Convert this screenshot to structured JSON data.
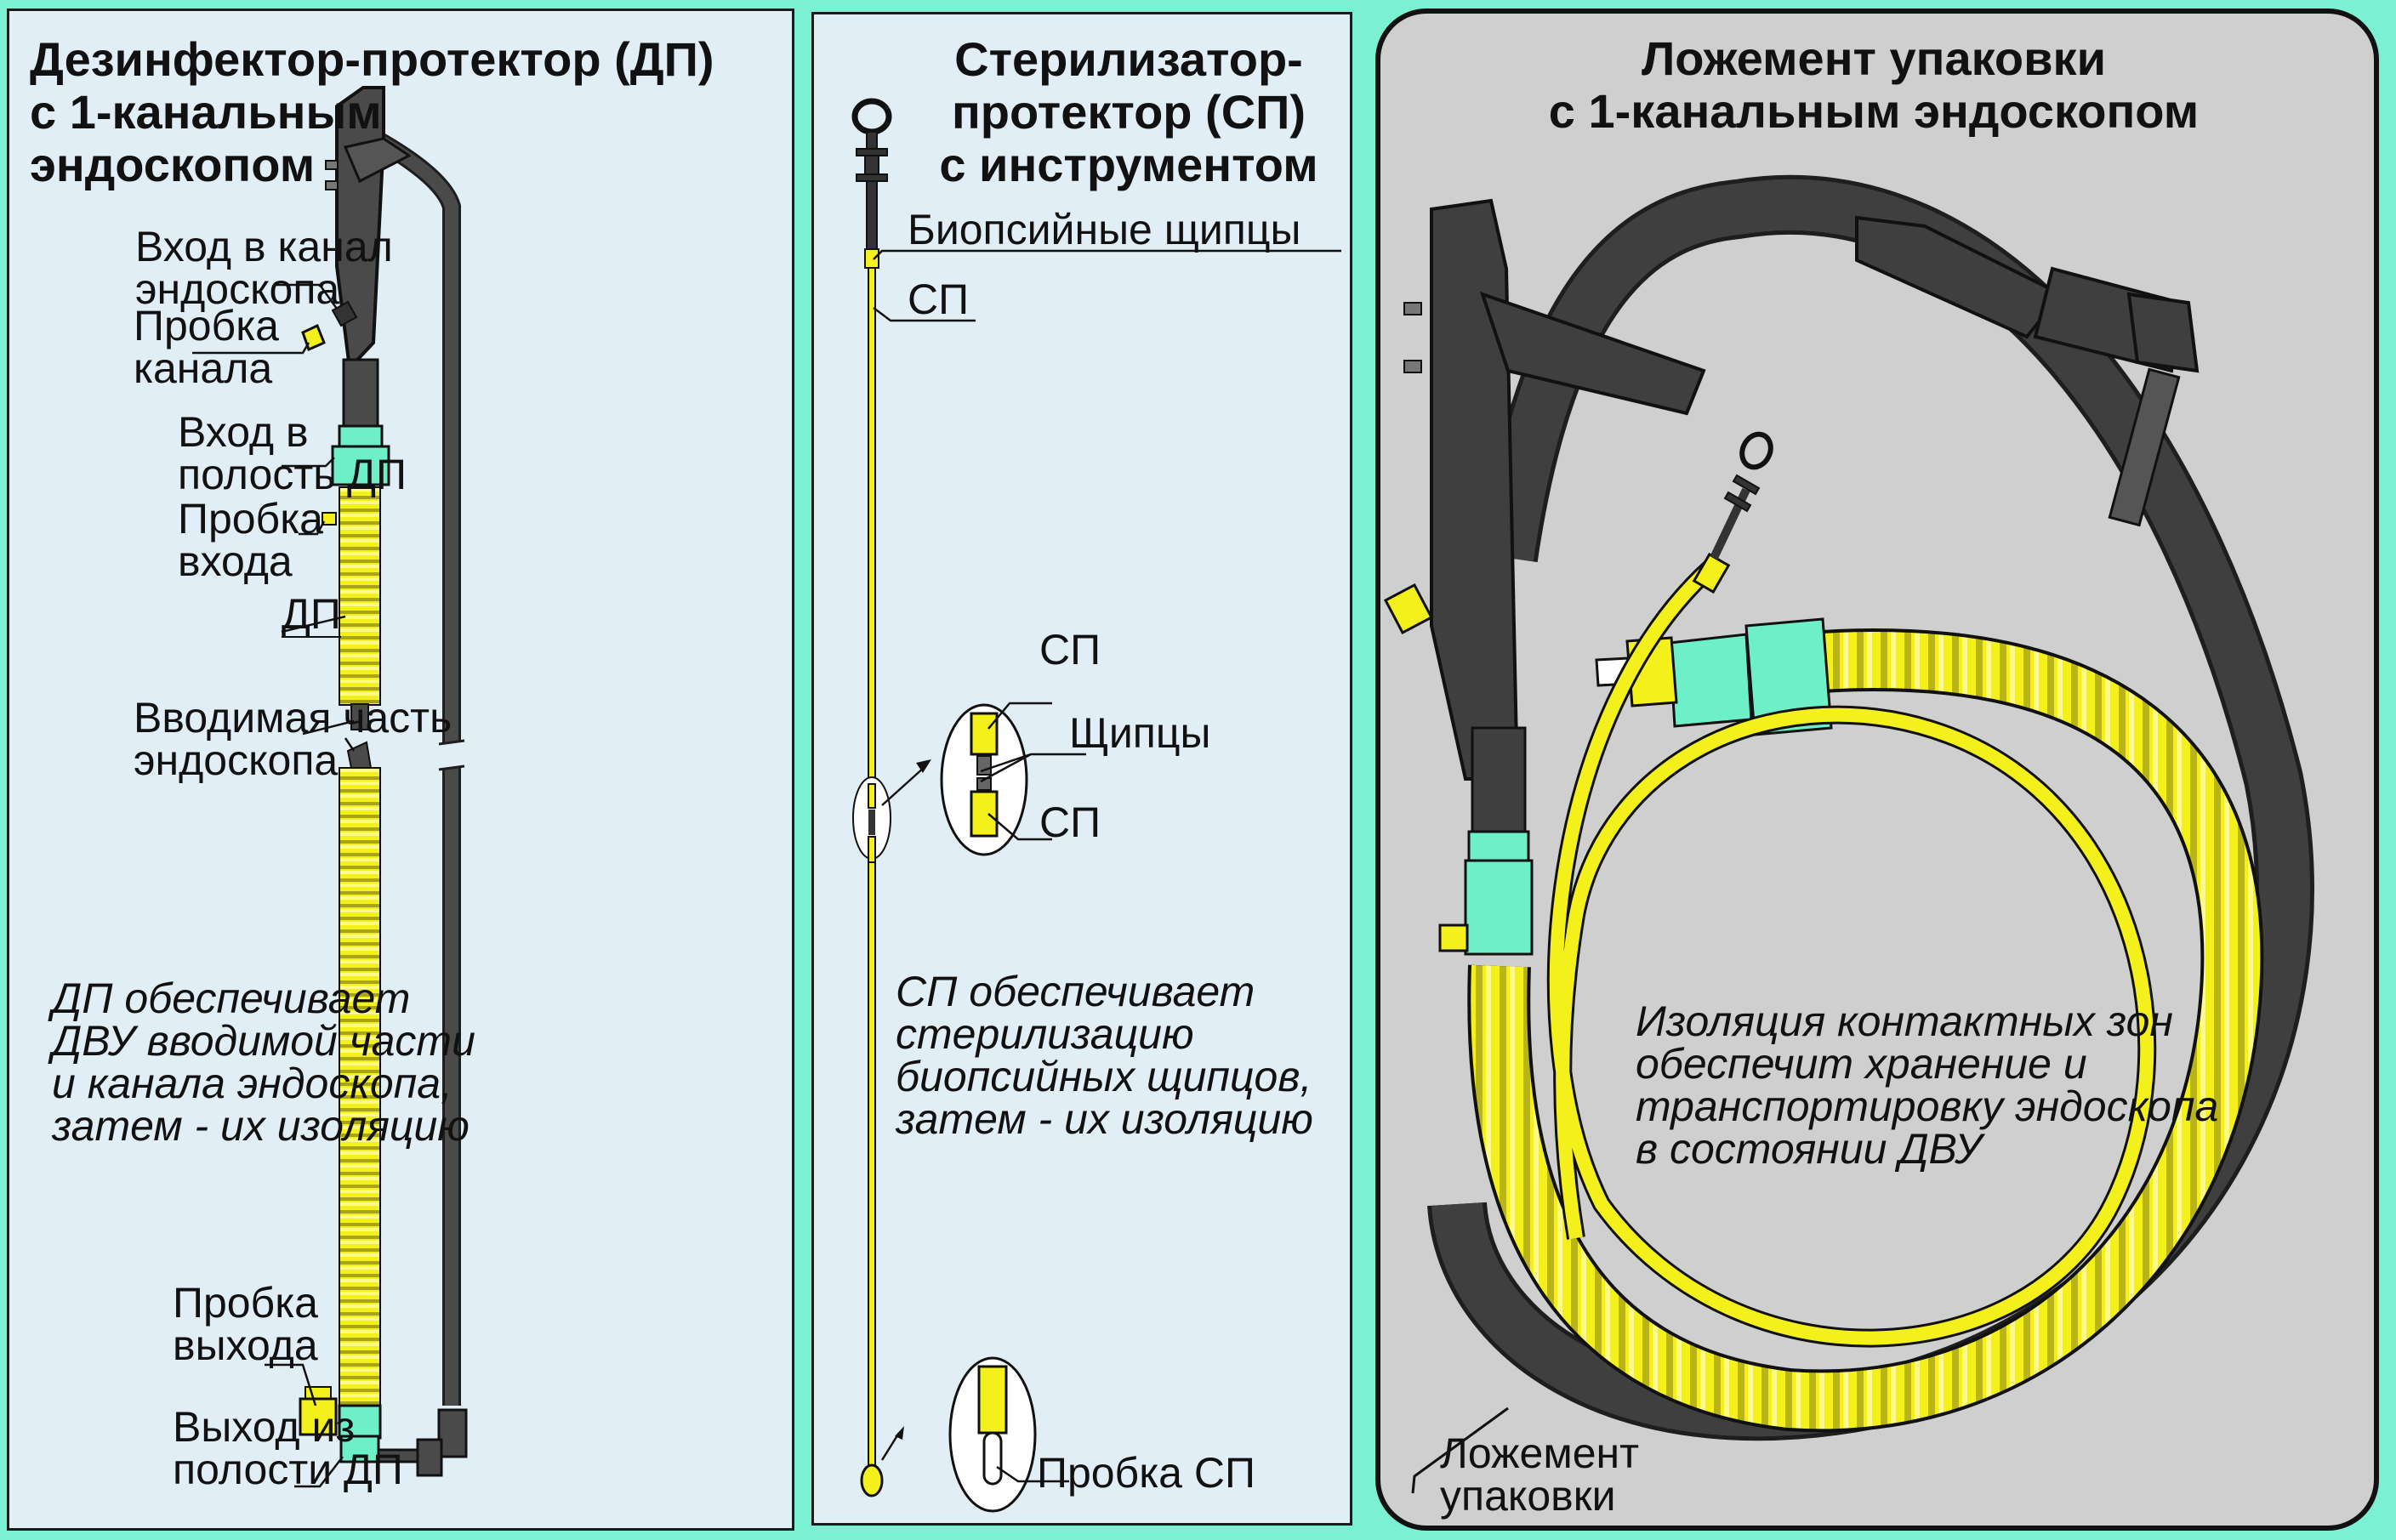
{
  "panels": {
    "dp": {
      "title": [
        "Дезинфектор-протектор (ДП)",
        "с 1-канальным",
        "эндоскопом"
      ],
      "labels": {
        "channel_entry": [
          "Вход в канал",
          "эндоскопа"
        ],
        "channel_plug": [
          "Пробка",
          "канала"
        ],
        "cavity_entry": [
          "Вход в",
          "полость ДП"
        ],
        "entry_plug": [
          "Пробка",
          "входа"
        ],
        "dp": "ДП",
        "insertion_part": [
          "Вводимая часть",
          "эндоскопа"
        ],
        "exit_plug": [
          "Пробка",
          "выхода"
        ],
        "cavity_exit": [
          "Выход из",
          "полости ДП"
        ]
      },
      "note": [
        "ДП обеспечивает",
        "ДВУ вводимой части",
        "и канала эндоскопа,",
        "затем - их изоляцию"
      ]
    },
    "sp": {
      "title": [
        "Стерилизатор-",
        "протектор (СП)",
        "с инструментом"
      ],
      "labels": {
        "biopsy_forceps": "Биопсийные щипцы",
        "sp_top": "СП",
        "sp_detail_top": "СП",
        "forceps": "Щипцы",
        "sp_detail_bottom": "СП",
        "sp_plug": "Пробка СП"
      },
      "note": [
        "СП обеспечивает",
        "стерилизацию",
        "биопсийных щипцов,",
        "затем - их изоляцию"
      ]
    },
    "package": {
      "title": [
        "Ложемент упаковки",
        "с 1-канальным эндоскопом"
      ],
      "note": [
        "Изоляция контактных зон",
        "обеспечит хранение и",
        "транспортировку эндоскопа",
        "в состоянии ДВУ"
      ],
      "label": [
        "Ложемент",
        "упаковки"
      ]
    }
  },
  "colors": {
    "background": "#7cf0d3",
    "panel": "#e2eef6",
    "package_panel": "#cfcfcf",
    "endoscope": "#3f3f3f",
    "yellow": "#f4f01c",
    "teal_connector": "#6df0c8"
  }
}
